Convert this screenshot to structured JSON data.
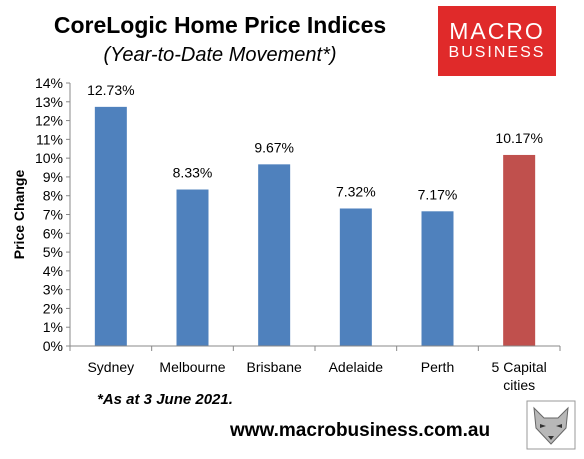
{
  "header": {
    "title": "CoreLogic Home Price Indices",
    "subtitle": "(Year-to-Date Movement*)"
  },
  "logo": {
    "line1": "MACRO",
    "line2": "BUSINESS",
    "color": "#e02a2a"
  },
  "footnote": "*As at 3 June 2021.",
  "website": "www.macrobusiness.com.au",
  "chart_data": {
    "type": "bar",
    "title": "CoreLogic Home Price Indices",
    "subtitle": "(Year-to-Date Movement*)",
    "xlabel": "",
    "ylabel": "Price Change",
    "categories": [
      "Sydney",
      "Melbourne",
      "Brisbane",
      "Adelaide",
      "Perth",
      "5 Capital cities"
    ],
    "values": [
      12.73,
      8.33,
      9.67,
      7.32,
      7.17,
      10.17
    ],
    "data_labels": [
      "12.73%",
      "8.33%",
      "9.67%",
      "7.32%",
      "7.17%",
      "10.17%"
    ],
    "bar_colors": [
      "#4f81bd",
      "#4f81bd",
      "#4f81bd",
      "#4f81bd",
      "#4f81bd",
      "#c0504d"
    ],
    "ylim": [
      0,
      14
    ],
    "yticks": [
      "0%",
      "1%",
      "2%",
      "3%",
      "4%",
      "5%",
      "6%",
      "7%",
      "8%",
      "9%",
      "10%",
      "11%",
      "12%",
      "13%",
      "14%"
    ],
    "grid": false,
    "legend": "none"
  }
}
